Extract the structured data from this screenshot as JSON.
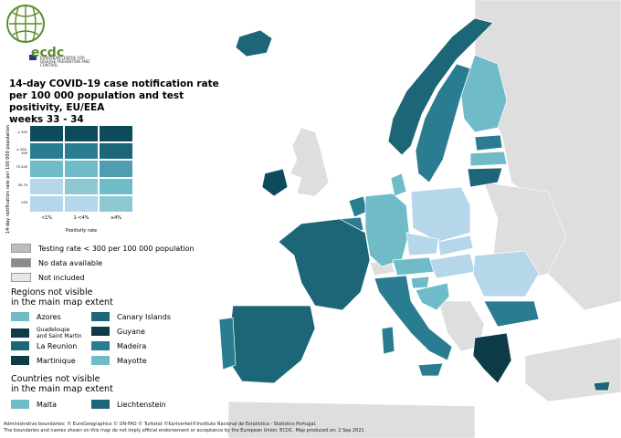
{
  "logo": {
    "name": "ecdc",
    "subtitle": "EUROPEAN CENTRE FOR DISEASE PREVENTION AND CONTROL"
  },
  "title": {
    "line1": "14-day COVID-19 case notification rate",
    "line2": "per 100 000 population and test positivity, EU/EEA",
    "line3": "weeks 33 - 34"
  },
  "matrix": {
    "y_axis_title": "14-day notification rate per 100 000 population",
    "rate_labels": [
      "≥ 500",
      "≥ 200-499",
      "75-200",
      "50-74",
      "<50"
    ],
    "positivity_labels": [
      "<1%",
      "1-<4%",
      "≥4%"
    ],
    "x_axis_title": "Positivity rate",
    "cell_colors": [
      [
        "#0d4a5b",
        "#0d4a5b",
        "#0d4a5b"
      ],
      [
        "#2a7d90",
        "#2a7d90",
        "#1d6677"
      ],
      [
        "#6fbcc8",
        "#6fbcc8",
        "#4e9db0"
      ],
      [
        "#b6d7ea",
        "#8ec8d0",
        "#6fbcc8"
      ],
      [
        "#b6d7ea",
        "#b6d7ea",
        "#8ec8d0"
      ]
    ]
  },
  "legend": {
    "items": [
      {
        "label": "Testing rate < 300 per 100 000 population",
        "color": "#bdbdbd"
      },
      {
        "label": "No data available",
        "color": "#8a8a8a"
      },
      {
        "label": "Not included",
        "color": "#e6e6e6"
      }
    ]
  },
  "regions": {
    "heading_line1": "Regions not visible",
    "heading_line2": "in the main map extent",
    "items": [
      {
        "label": "Azores",
        "color": "#6fbcc8",
        "small": false
      },
      {
        "label": "Canary Islands",
        "color": "#1d6677",
        "small": false
      },
      {
        "label_line1": "Guadeloupe",
        "label_line2": "and Saint Martin",
        "color": "#0d3b48",
        "small": true
      },
      {
        "label": "Guyane",
        "color": "#0d3b48",
        "small": false
      },
      {
        "label": "La Reunion",
        "color": "#1d6677",
        "small": false
      },
      {
        "label": "Madeira",
        "color": "#2a7d90",
        "small": false
      },
      {
        "label": "Martinique",
        "color": "#0d3b48",
        "small": false
      },
      {
        "label": "Mayotte",
        "color": "#6fbcc8",
        "small": false
      }
    ]
  },
  "countries": {
    "heading_line1": "Countries not visible",
    "heading_line2": "in the main map extent",
    "items": [
      {
        "label": "Malta",
        "color": "#6fbcc8"
      },
      {
        "label": "Liechtenstein",
        "color": "#1d6677"
      }
    ]
  },
  "footer": {
    "line1": "Administrative boundaries: © EuroGeographics © UN-FAO © Turkstat ©Kartverket©Instituto Nacional de Estatística - Statistics Portugal.",
    "line2": "The boundaries and names shown on this map do not imply official endorsement or acceptance by the European Union. ECDC. Map produced on: 2 Sep 2021"
  },
  "colors": {
    "not_included": "#e0e0e0",
    "very_dark": "#0d3b48",
    "dark": "#1d6677",
    "mid": "#2a7d90",
    "light": "#6fbcc8",
    "pale": "#b6d7ea",
    "sea": "#ffffff"
  }
}
